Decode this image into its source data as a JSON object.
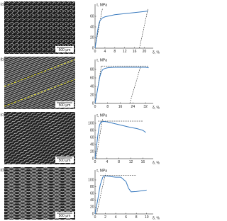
{
  "panels": [
    {
      "label": "(a)",
      "scale_bar": "500 μm"
    },
    {
      "label": "(b)",
      "scale_bar": "500 μm"
    },
    {
      "label": "(c)",
      "scale_bar": "500 μm"
    },
    {
      "label": "(d)",
      "scale_bar": "500 μm"
    }
  ],
  "chart_data": [
    {
      "type": "line",
      "ylabel": "τ, MPa",
      "xlabel": "δ, %",
      "xlim": [
        0,
        23
      ],
      "ylim": [
        0,
        80
      ],
      "xticks": [
        0,
        4,
        8,
        12,
        16,
        20
      ],
      "yticks": [
        0,
        20,
        40,
        60
      ],
      "x": [
        0,
        0.5,
        1,
        1.5,
        2,
        3,
        4,
        6,
        8,
        10,
        12,
        14,
        16,
        18,
        20,
        21.5
      ],
      "series": [
        {
          "color": "#3a7bbf",
          "values": [
            0,
            15,
            32,
            45,
            52,
            57,
            59,
            61,
            63,
            64,
            65,
            66,
            67,
            68,
            69,
            70
          ]
        }
      ],
      "dashed_lines": [
        {
          "x": [
            0,
            3
          ],
          "y": [
            0,
            75
          ]
        },
        {
          "x": [
            18,
            21.5
          ],
          "y": [
            0,
            75
          ]
        }
      ]
    },
    {
      "type": "line",
      "ylabel": "τ, MPa",
      "xlabel": "δ, %",
      "xlim": [
        0,
        36
      ],
      "ylim": [
        0,
        100
      ],
      "xticks": [
        0,
        8,
        16,
        24,
        32
      ],
      "yticks": [
        0,
        20,
        40,
        60,
        80
      ],
      "x": [
        0,
        1,
        2,
        3,
        4,
        5,
        6,
        8,
        12,
        16,
        20,
        24,
        28,
        32,
        34
      ],
      "series": [
        {
          "color": "#3a7bbf",
          "values": [
            0,
            20,
            42,
            62,
            75,
            80,
            82,
            84,
            85,
            85,
            85,
            85,
            85,
            85,
            84
          ]
        }
      ],
      "dashed_lines": [
        {
          "x": [
            0,
            4
          ],
          "y": [
            0,
            88
          ]
        },
        {
          "x": [
            4,
            34
          ],
          "y": [
            88,
            88
          ]
        },
        {
          "x": [
            22,
            29
          ],
          "y": [
            0,
            88
          ]
        }
      ]
    },
    {
      "type": "line",
      "ylabel": "τ, MPa",
      "xlabel": "δ, %",
      "xlim": [
        0,
        19
      ],
      "ylim": [
        0,
        120
      ],
      "xticks": [
        0,
        4,
        8,
        12,
        16
      ],
      "yticks": [
        0,
        20,
        40,
        60,
        80,
        100
      ],
      "x": [
        0,
        0.5,
        1,
        1.5,
        2,
        3,
        4,
        6,
        8,
        10,
        12,
        14,
        16,
        17
      ],
      "series": [
        {
          "color": "#3a7bbf",
          "values": [
            0,
            35,
            70,
            95,
            104,
            105,
            104,
            100,
            96,
            92,
            88,
            85,
            80,
            74
          ]
        }
      ],
      "dashed_lines": [
        {
          "x": [
            0.3,
            2.5
          ],
          "y": [
            0,
            112
          ]
        },
        {
          "x": [
            1,
            16
          ],
          "y": [
            106,
            106
          ]
        }
      ]
    },
    {
      "type": "line",
      "ylabel": "τ, MPa",
      "xlabel": "δ, %",
      "xlim": [
        0,
        11
      ],
      "ylim": [
        0,
        125
      ],
      "xticks": [
        0,
        2,
        4,
        6,
        8,
        10
      ],
      "yticks": [
        0,
        20,
        40,
        60,
        80,
        100
      ],
      "x": [
        0,
        0.5,
        1,
        1.5,
        2,
        3,
        4,
        5,
        6,
        6.5,
        7,
        8,
        9,
        10
      ],
      "series": [
        {
          "color": "#3a7bbf",
          "values": [
            0,
            40,
            85,
            108,
            112,
            110,
            108,
            108,
            95,
            75,
            65,
            66,
            68,
            70
          ]
        }
      ],
      "dashed_lines": [
        {
          "x": [
            0.3,
            2
          ],
          "y": [
            0,
            118
          ]
        },
        {
          "x": [
            1,
            8
          ],
          "y": [
            114,
            114
          ]
        }
      ]
    }
  ]
}
